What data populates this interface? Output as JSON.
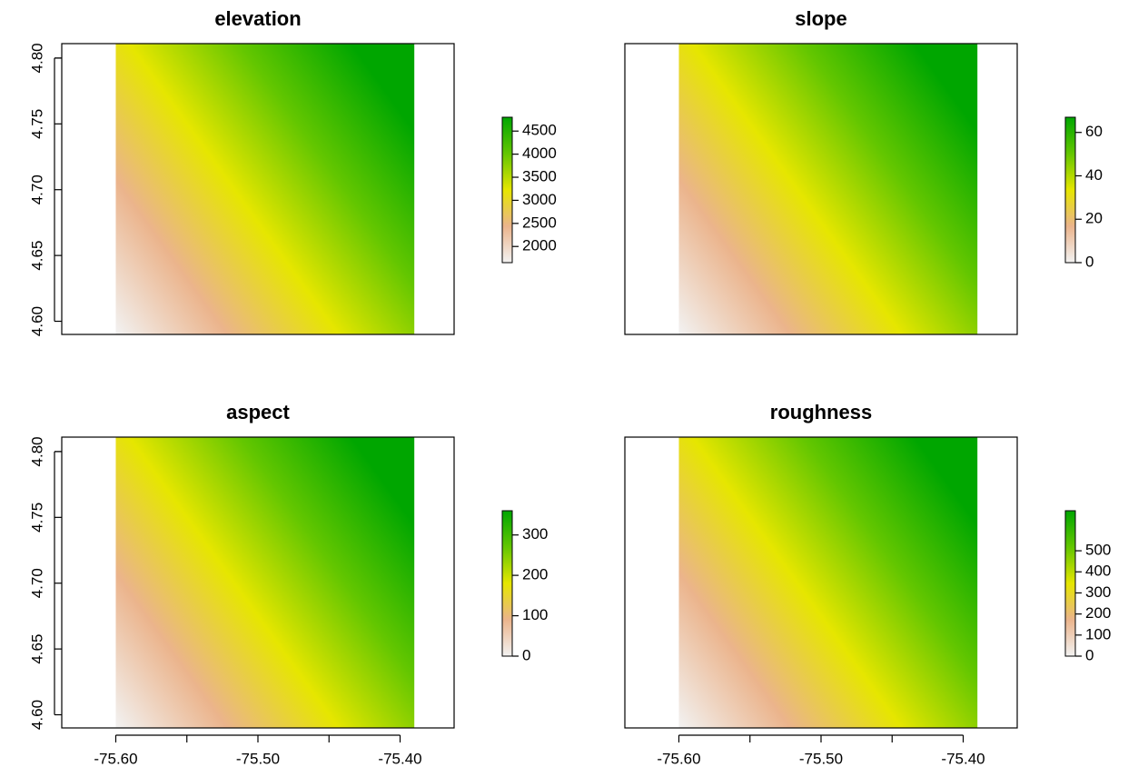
{
  "chart_data": [
    {
      "type": "raster",
      "title": "elevation",
      "xlim": [
        -75.638,
        -75.362
      ],
      "ylim": [
        4.59,
        4.811
      ],
      "extent": [
        -75.6,
        -75.39,
        4.59,
        4.811
      ],
      "yticks": [
        {
          "value": 4.6,
          "label": "4.60"
        },
        {
          "value": 4.65,
          "label": "4.65"
        },
        {
          "value": 4.7,
          "label": "4.70"
        },
        {
          "value": 4.75,
          "label": "4.75"
        },
        {
          "value": 4.8,
          "label": "4.80"
        }
      ],
      "colorbar": {
        "lim": [
          1650,
          4800
        ],
        "ticks": [
          2000,
          2500,
          3000,
          3500,
          4000,
          4500
        ],
        "colors": [
          "#f2f2f2",
          "#ebb48c",
          "#e6e600",
          "#63c600",
          "#00a600"
        ]
      }
    },
    {
      "type": "raster",
      "title": "slope",
      "xlim": [
        -75.638,
        -75.362
      ],
      "ylim": [
        4.59,
        4.811
      ],
      "extent": [
        -75.6,
        -75.39,
        4.59,
        4.811
      ],
      "colorbar": {
        "lim": [
          0,
          67
        ],
        "ticks": [
          0,
          20,
          40,
          60
        ],
        "colors": [
          "#f2f2f2",
          "#ebb48c",
          "#e6e600",
          "#63c600",
          "#00a600"
        ]
      }
    },
    {
      "type": "raster",
      "title": "aspect",
      "xlim": [
        -75.638,
        -75.362
      ],
      "ylim": [
        4.59,
        4.811
      ],
      "extent": [
        -75.6,
        -75.39,
        4.59,
        4.811
      ],
      "xticks": [
        {
          "value": -75.6,
          "label": "-75.60"
        },
        {
          "value": -75.5,
          "label": "-75.50"
        },
        {
          "value": -75.4,
          "label": "-75.40"
        }
      ],
      "xminor_ticks": [
        -75.55,
        -75.45
      ],
      "yticks": [
        {
          "value": 4.6,
          "label": "4.60"
        },
        {
          "value": 4.65,
          "label": "4.65"
        },
        {
          "value": 4.7,
          "label": "4.70"
        },
        {
          "value": 4.75,
          "label": "4.75"
        },
        {
          "value": 4.8,
          "label": "4.80"
        }
      ],
      "colorbar": {
        "lim": [
          0,
          360
        ],
        "ticks": [
          0,
          100,
          200,
          300
        ],
        "colors": [
          "#f2f2f2",
          "#ebb48c",
          "#e6e600",
          "#63c600",
          "#00a600"
        ]
      }
    },
    {
      "type": "raster",
      "title": "roughness",
      "xlim": [
        -75.638,
        -75.362
      ],
      "ylim": [
        4.59,
        4.811
      ],
      "extent": [
        -75.6,
        -75.39,
        4.59,
        4.811
      ],
      "xticks": [
        {
          "value": -75.6,
          "label": "-75.60"
        },
        {
          "value": -75.5,
          "label": "-75.50"
        },
        {
          "value": -75.4,
          "label": "-75.40"
        }
      ],
      "xminor_ticks": [
        -75.55,
        -75.45
      ],
      "colorbar": {
        "lim": [
          0,
          690
        ],
        "ticks": [
          0,
          100,
          200,
          300,
          400,
          500
        ],
        "colors": [
          "#f2f2f2",
          "#ebb48c",
          "#e6e600",
          "#63c600",
          "#00a600"
        ]
      }
    }
  ]
}
